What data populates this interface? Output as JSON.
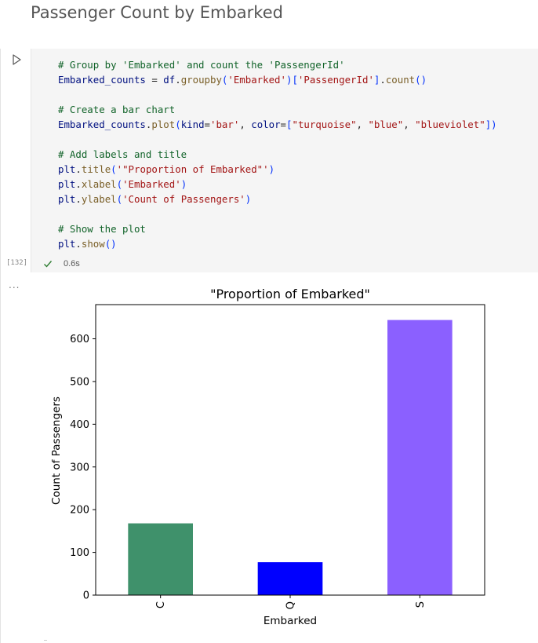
{
  "markdown": {
    "heading": "Passenger Count by Embarked"
  },
  "cell": {
    "execution_count": "[132]",
    "exec_time": "0.6s",
    "status_icon": "check-icon",
    "run_icon": "play-icon",
    "output_menu_label": "...",
    "code_lines": [
      [
        {
          "t": "# Group by 'Embarked' and count the 'PassengerId'",
          "c": "tk-c"
        }
      ],
      [
        {
          "t": "Embarked_counts",
          "c": "tk-i"
        },
        {
          "t": " = ",
          "c": "tk-k"
        },
        {
          "t": "df",
          "c": "tk-i"
        },
        {
          "t": ".",
          "c": "tk-k"
        },
        {
          "t": "groupby",
          "c": "tk-f"
        },
        {
          "t": "(",
          "c": "tk-p"
        },
        {
          "t": "'Embarked'",
          "c": "tk-s"
        },
        {
          "t": ")",
          "c": "tk-p"
        },
        {
          "t": "[",
          "c": "tk-p"
        },
        {
          "t": "'PassengerId'",
          "c": "tk-s"
        },
        {
          "t": "]",
          "c": "tk-p"
        },
        {
          "t": ".",
          "c": "tk-k"
        },
        {
          "t": "count",
          "c": "tk-f"
        },
        {
          "t": "()",
          "c": "tk-p"
        }
      ],
      [],
      [
        {
          "t": "# Create a bar chart",
          "c": "tk-c"
        }
      ],
      [
        {
          "t": "Embarked_counts",
          "c": "tk-i"
        },
        {
          "t": ".",
          "c": "tk-k"
        },
        {
          "t": "plot",
          "c": "tk-f"
        },
        {
          "t": "(",
          "c": "tk-p"
        },
        {
          "t": "kind",
          "c": "tk-i"
        },
        {
          "t": "=",
          "c": "tk-k"
        },
        {
          "t": "'bar'",
          "c": "tk-s"
        },
        {
          "t": ", ",
          "c": "tk-k"
        },
        {
          "t": "color",
          "c": "tk-i"
        },
        {
          "t": "=",
          "c": "tk-k"
        },
        {
          "t": "[",
          "c": "tk-p"
        },
        {
          "t": "\"turquoise\"",
          "c": "tk-s"
        },
        {
          "t": ", ",
          "c": "tk-k"
        },
        {
          "t": "\"blue\"",
          "c": "tk-s"
        },
        {
          "t": ", ",
          "c": "tk-k"
        },
        {
          "t": "\"blueviolet\"",
          "c": "tk-s"
        },
        {
          "t": "])",
          "c": "tk-p"
        }
      ],
      [],
      [
        {
          "t": "# Add labels and title",
          "c": "tk-c"
        }
      ],
      [
        {
          "t": "plt",
          "c": "tk-i"
        },
        {
          "t": ".",
          "c": "tk-k"
        },
        {
          "t": "title",
          "c": "tk-f"
        },
        {
          "t": "(",
          "c": "tk-p"
        },
        {
          "t": "'\"Proportion of Embarked\"'",
          "c": "tk-s"
        },
        {
          "t": ")",
          "c": "tk-p"
        }
      ],
      [
        {
          "t": "plt",
          "c": "tk-i"
        },
        {
          "t": ".",
          "c": "tk-k"
        },
        {
          "t": "xlabel",
          "c": "tk-f"
        },
        {
          "t": "(",
          "c": "tk-p"
        },
        {
          "t": "'Embarked'",
          "c": "tk-s"
        },
        {
          "t": ")",
          "c": "tk-p"
        }
      ],
      [
        {
          "t": "plt",
          "c": "tk-i"
        },
        {
          "t": ".",
          "c": "tk-k"
        },
        {
          "t": "ylabel",
          "c": "tk-f"
        },
        {
          "t": "(",
          "c": "tk-p"
        },
        {
          "t": "'Count of Passengers'",
          "c": "tk-s"
        },
        {
          "t": ")",
          "c": "tk-p"
        }
      ],
      [],
      [
        {
          "t": "# Show the plot",
          "c": "tk-c"
        }
      ],
      [
        {
          "t": "plt",
          "c": "tk-i"
        },
        {
          "t": ".",
          "c": "tk-k"
        },
        {
          "t": "show",
          "c": "tk-f"
        },
        {
          "t": "()",
          "c": "tk-p"
        }
      ]
    ]
  },
  "colors": {
    "cell_background": "#f5f5f5",
    "check": "#2e7d32",
    "comment": "#116329",
    "string": "#a31515"
  },
  "chart_data": {
    "type": "bar",
    "title": "\"Proportion of Embarked\"",
    "xlabel": "Embarked",
    "ylabel": "Count of Passengers",
    "categories": [
      "C",
      "Q",
      "S"
    ],
    "values": [
      168,
      77,
      644
    ],
    "colors": [
      "#3f916b",
      "#0000ff",
      "#8b60ff"
    ],
    "ylim": [
      0,
      680
    ],
    "yticks": [
      0,
      100,
      200,
      300,
      400,
      500,
      600
    ],
    "xtick_rotation": 90,
    "grid": false,
    "legend": false
  }
}
